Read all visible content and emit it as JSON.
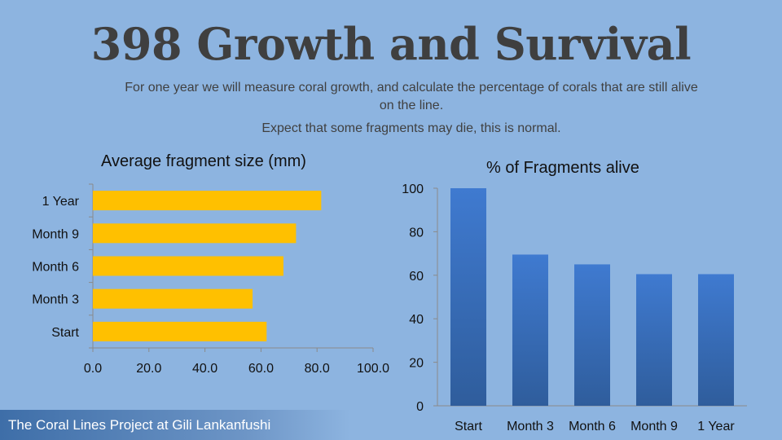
{
  "header": {
    "title": "398 Growth and Survival",
    "subtitle_line1": "For one year we will measure coral growth, and calculate the percentage of corals that are still alive on the line.",
    "subtitle_line2": "Expect that some fragments may die, this is normal."
  },
  "footer": {
    "text": "The Coral Lines Project at Gili Lankanfushi"
  },
  "colors": {
    "background": "#8db4e0",
    "bar_gold": "#ffc000",
    "bar_blue": "#3d76c8"
  },
  "chart_data": [
    {
      "type": "bar",
      "orientation": "horizontal",
      "title": "Average fragment size (mm)",
      "categories": [
        "Start",
        "Month 3",
        "Month 6",
        "Month 9",
        "1 Year"
      ],
      "values": [
        62,
        57,
        68,
        72.5,
        81.5
      ],
      "xlim": [
        0,
        100
      ],
      "ticks": [
        "0.0",
        "20.0",
        "40.0",
        "60.0",
        "80.0",
        "100.0"
      ],
      "grid": false,
      "color": "#ffc000"
    },
    {
      "type": "bar",
      "orientation": "vertical",
      "title": "% of Fragments alive",
      "categories": [
        "Start",
        "Month 3",
        "Month 6",
        "Month 9",
        "1 Year"
      ],
      "values": [
        100,
        69.5,
        65,
        60.5,
        60.5
      ],
      "ylim": [
        0,
        100
      ],
      "ticks": [
        "0",
        "20",
        "40",
        "60",
        "80",
        "100"
      ],
      "grid": false,
      "color": "#3d76c8"
    }
  ]
}
